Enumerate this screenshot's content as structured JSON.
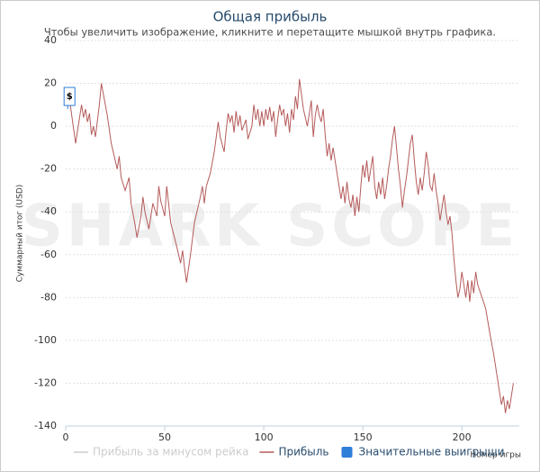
{
  "chart_data": {
    "type": "line",
    "title": "Общая прибыль",
    "subtitle": "Чтобы увеличить изображение, кликните и перетащите мышкой внутрь графика.",
    "xlabel": "Номер игры",
    "ylabel": "Суммарный итог (USD)",
    "watermark": "SHARK SCOPE",
    "xlim": [
      0,
      229
    ],
    "xticks": [
      0,
      50,
      100,
      150,
      200
    ],
    "ylim": [
      -140,
      40
    ],
    "yticks": [
      -140,
      -120,
      -100,
      -80,
      -60,
      -40,
      -20,
      0,
      20,
      40
    ],
    "grid": true,
    "series": [
      {
        "name": "Прибыль за минусом рейка",
        "color": "#cccccc",
        "visible": false
      },
      {
        "name": "Прибыль",
        "color": "#b55a5a",
        "x": [
          0,
          2,
          5,
          8,
          9,
          10,
          11,
          12,
          13,
          14,
          15,
          17,
          18,
          19,
          21,
          23,
          24,
          26,
          27,
          28,
          30,
          32,
          33,
          35,
          36,
          38,
          39,
          40,
          42,
          44,
          46,
          47,
          48,
          50,
          51,
          53,
          56,
          58,
          59,
          60,
          61,
          63,
          65,
          68,
          69,
          70,
          71,
          73,
          75,
          77,
          78,
          80,
          81,
          82,
          83,
          84,
          85,
          86,
          87,
          88,
          89,
          91,
          92,
          94,
          95,
          96,
          97,
          98,
          99,
          100,
          101,
          102,
          103,
          104,
          105,
          106,
          107,
          108,
          109,
          110,
          111,
          112,
          113,
          114,
          115,
          116,
          117,
          118,
          119,
          120,
          122,
          123,
          124,
          125,
          126,
          127,
          128,
          129,
          130,
          131,
          132,
          133,
          134,
          135,
          136,
          137,
          138,
          139,
          140,
          141,
          142,
          143,
          144,
          145,
          146,
          147,
          148,
          149,
          150,
          151,
          152,
          153,
          154,
          155,
          156,
          157,
          158,
          159,
          160,
          161,
          162,
          163,
          164,
          165,
          166,
          167,
          168,
          169,
          170,
          171,
          172,
          173,
          174,
          175,
          176,
          177,
          178,
          179,
          180,
          181,
          182,
          183,
          184,
          185,
          186,
          187,
          188,
          189,
          190,
          191,
          192,
          193,
          194,
          195,
          196,
          197,
          198,
          199,
          200,
          201,
          202,
          203,
          204,
          205,
          206,
          207,
          208,
          212,
          214,
          216,
          218,
          220,
          221,
          222,
          223,
          224,
          226
        ],
        "values": [
          10,
          12,
          -8,
          10,
          4,
          8,
          2,
          6,
          -4,
          0,
          -5,
          10,
          20,
          15,
          5,
          -8,
          -12,
          -20,
          -14,
          -24,
          -30,
          -24,
          -36,
          -46,
          -52,
          -42,
          -33,
          -40,
          -48,
          -36,
          -42,
          -28,
          -35,
          -42,
          -28,
          -45,
          -56,
          -64,
          -58,
          -66,
          -73,
          -60,
          -45,
          -33,
          -28,
          -36,
          -28,
          -22,
          -12,
          2,
          -5,
          -12,
          -2,
          6,
          2,
          5,
          -3,
          7,
          0,
          5,
          -2,
          3,
          -6,
          0,
          10,
          3,
          8,
          0,
          7,
          0,
          8,
          3,
          9,
          2,
          7,
          -5,
          3,
          10,
          5,
          8,
          0,
          6,
          -3,
          8,
          3,
          14,
          8,
          22,
          15,
          8,
          0,
          6,
          12,
          -5,
          5,
          10,
          5,
          2,
          8,
          -4,
          -14,
          -8,
          -16,
          -10,
          -16,
          -22,
          -28,
          -34,
          -28,
          -36,
          -26,
          -34,
          -38,
          -32,
          -42,
          -33,
          -40,
          -28,
          -18,
          -24,
          -16,
          -26,
          -20,
          -14,
          -28,
          -34,
          -26,
          -32,
          -24,
          -34,
          -28,
          -20,
          -14,
          -6,
          0,
          -10,
          -20,
          -28,
          -38,
          -30,
          -24,
          -16,
          -8,
          -4,
          -16,
          -26,
          -32,
          -24,
          -30,
          -22,
          -12,
          -18,
          -28,
          -30,
          -22,
          -30,
          -36,
          -44,
          -38,
          -32,
          -40,
          -46,
          -42,
          -50,
          -62,
          -72,
          -80,
          -76,
          -68,
          -74,
          -80,
          -72,
          -82,
          -72,
          -78,
          -68,
          -74,
          -85,
          -96,
          -106,
          -118,
          -130,
          -126,
          -134,
          -128,
          -132,
          -120
        ]
      },
      {
        "name": "Значительные выигрыши",
        "color": "#2f7ed8",
        "type": "flag",
        "x": [
          1
        ],
        "values": [
          8
        ],
        "labels": [
          "$"
        ]
      }
    ]
  }
}
